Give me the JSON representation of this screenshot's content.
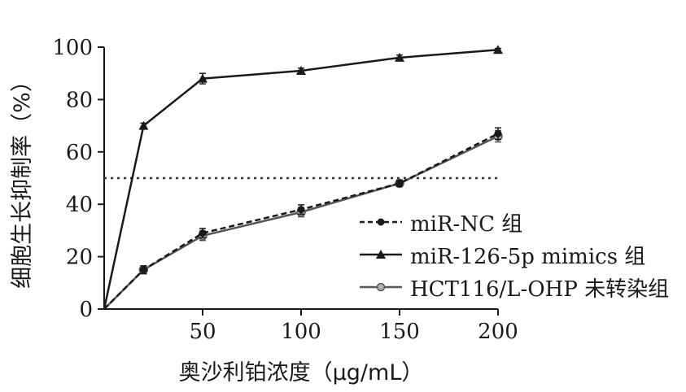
{
  "chart_data": {
    "type": "line",
    "ylabel": "细胞生长抑制率（%）",
    "xlabel": "奥沙利铂浓度（μg/mL）",
    "x": [
      0,
      20,
      50,
      100,
      150,
      200
    ],
    "xticks": [
      "50",
      "100",
      "150",
      "200"
    ],
    "xtick_values": [
      50,
      100,
      150,
      200
    ],
    "yticks": [
      "0",
      "20",
      "40",
      "60",
      "80",
      "100"
    ],
    "ytick_values": [
      0,
      20,
      40,
      60,
      80,
      100
    ],
    "xlim": [
      0,
      200
    ],
    "ylim": [
      0,
      100
    ],
    "reference_line": {
      "y": 50,
      "style": "dotted"
    },
    "grid": false,
    "legend_position": "bottom-right",
    "series": [
      {
        "name": "miR-NC 组",
        "values": [
          0,
          15,
          29,
          38,
          48,
          67
        ],
        "errors": [
          0,
          1.5,
          1.8,
          1.8,
          1.2,
          2.2
        ],
        "marker": "circle",
        "line": "dashed",
        "color": "#1a1a1a"
      },
      {
        "name": "miR-126-5p mimics 组",
        "values": [
          0,
          70,
          88,
          91,
          96,
          99
        ],
        "errors": [
          0,
          1,
          2,
          1,
          1,
          0.5
        ],
        "marker": "triangle",
        "line": "solid",
        "color": "#1a1a1a"
      },
      {
        "name": "HCT116/L-OHP 未转染组",
        "values": [
          0,
          15,
          28,
          37,
          48,
          66
        ],
        "errors": [
          0,
          1.5,
          1.8,
          1.8,
          1.2,
          2.2
        ],
        "marker": "circle-gray",
        "line": "solid",
        "color": "#555555"
      }
    ]
  }
}
